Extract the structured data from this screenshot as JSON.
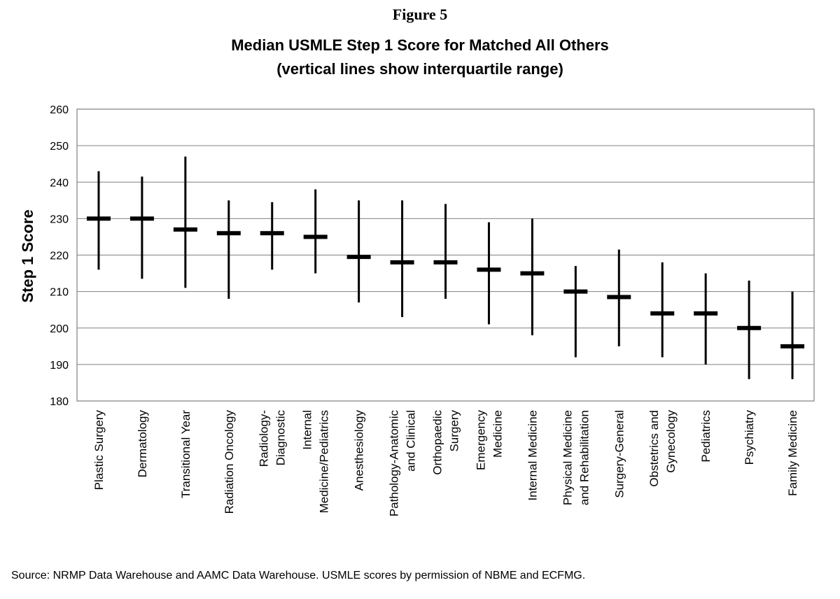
{
  "header": {
    "figure_label": "Figure 5"
  },
  "footer": {
    "source": "Source: NRMP Data Warehouse and AAMC Data Warehouse.  USMLE scores by permission of NBME and ECFMG."
  },
  "chart_data": {
    "type": "range",
    "title": "Median USMLE Step 1 Score for Matched All Others",
    "subtitle": "(vertical lines show interquartile range)",
    "xlabel": "",
    "ylabel": "Step 1 Score",
    "ylim": [
      180,
      260
    ],
    "yticks": [
      180,
      190,
      200,
      210,
      220,
      230,
      240,
      250,
      260
    ],
    "grid": true,
    "categories": [
      [
        "Plastic Surgery"
      ],
      [
        "Dermatology"
      ],
      [
        "Transitional Year"
      ],
      [
        "Radiation Oncology"
      ],
      [
        "Radiology-",
        "Diagnostic"
      ],
      [
        "Internal",
        "Medicine/Pediatrics"
      ],
      [
        "Anesthesiology"
      ],
      [
        "Pathology-Anatomic",
        "and Clinical"
      ],
      [
        "Orthopaedic",
        "Surgery"
      ],
      [
        "Emergency",
        "Medicine"
      ],
      [
        "Internal Medicine"
      ],
      [
        "Physical Medicine",
        "and Rehabilitation"
      ],
      [
        "Surgery-General"
      ],
      [
        "Obstetrics and",
        "Gynecology"
      ],
      [
        "Pediatrics"
      ],
      [
        "Psychiatry"
      ],
      [
        "Family Medicine"
      ]
    ],
    "series": [
      {
        "name": "Median",
        "values": [
          230,
          230,
          227,
          226,
          226,
          225,
          219.5,
          218,
          218,
          216,
          215,
          210,
          208.5,
          204,
          204,
          200,
          195
        ]
      },
      {
        "name": "Q1",
        "values": [
          216,
          213.5,
          211,
          208,
          216,
          215,
          207,
          203,
          208,
          201,
          198,
          192,
          195,
          192,
          190,
          186,
          186
        ]
      },
      {
        "name": "Q3",
        "values": [
          243,
          241.5,
          247,
          235,
          234.5,
          238,
          235,
          235,
          234,
          229,
          230,
          217,
          221.5,
          218,
          215,
          213,
          210
        ]
      }
    ]
  }
}
